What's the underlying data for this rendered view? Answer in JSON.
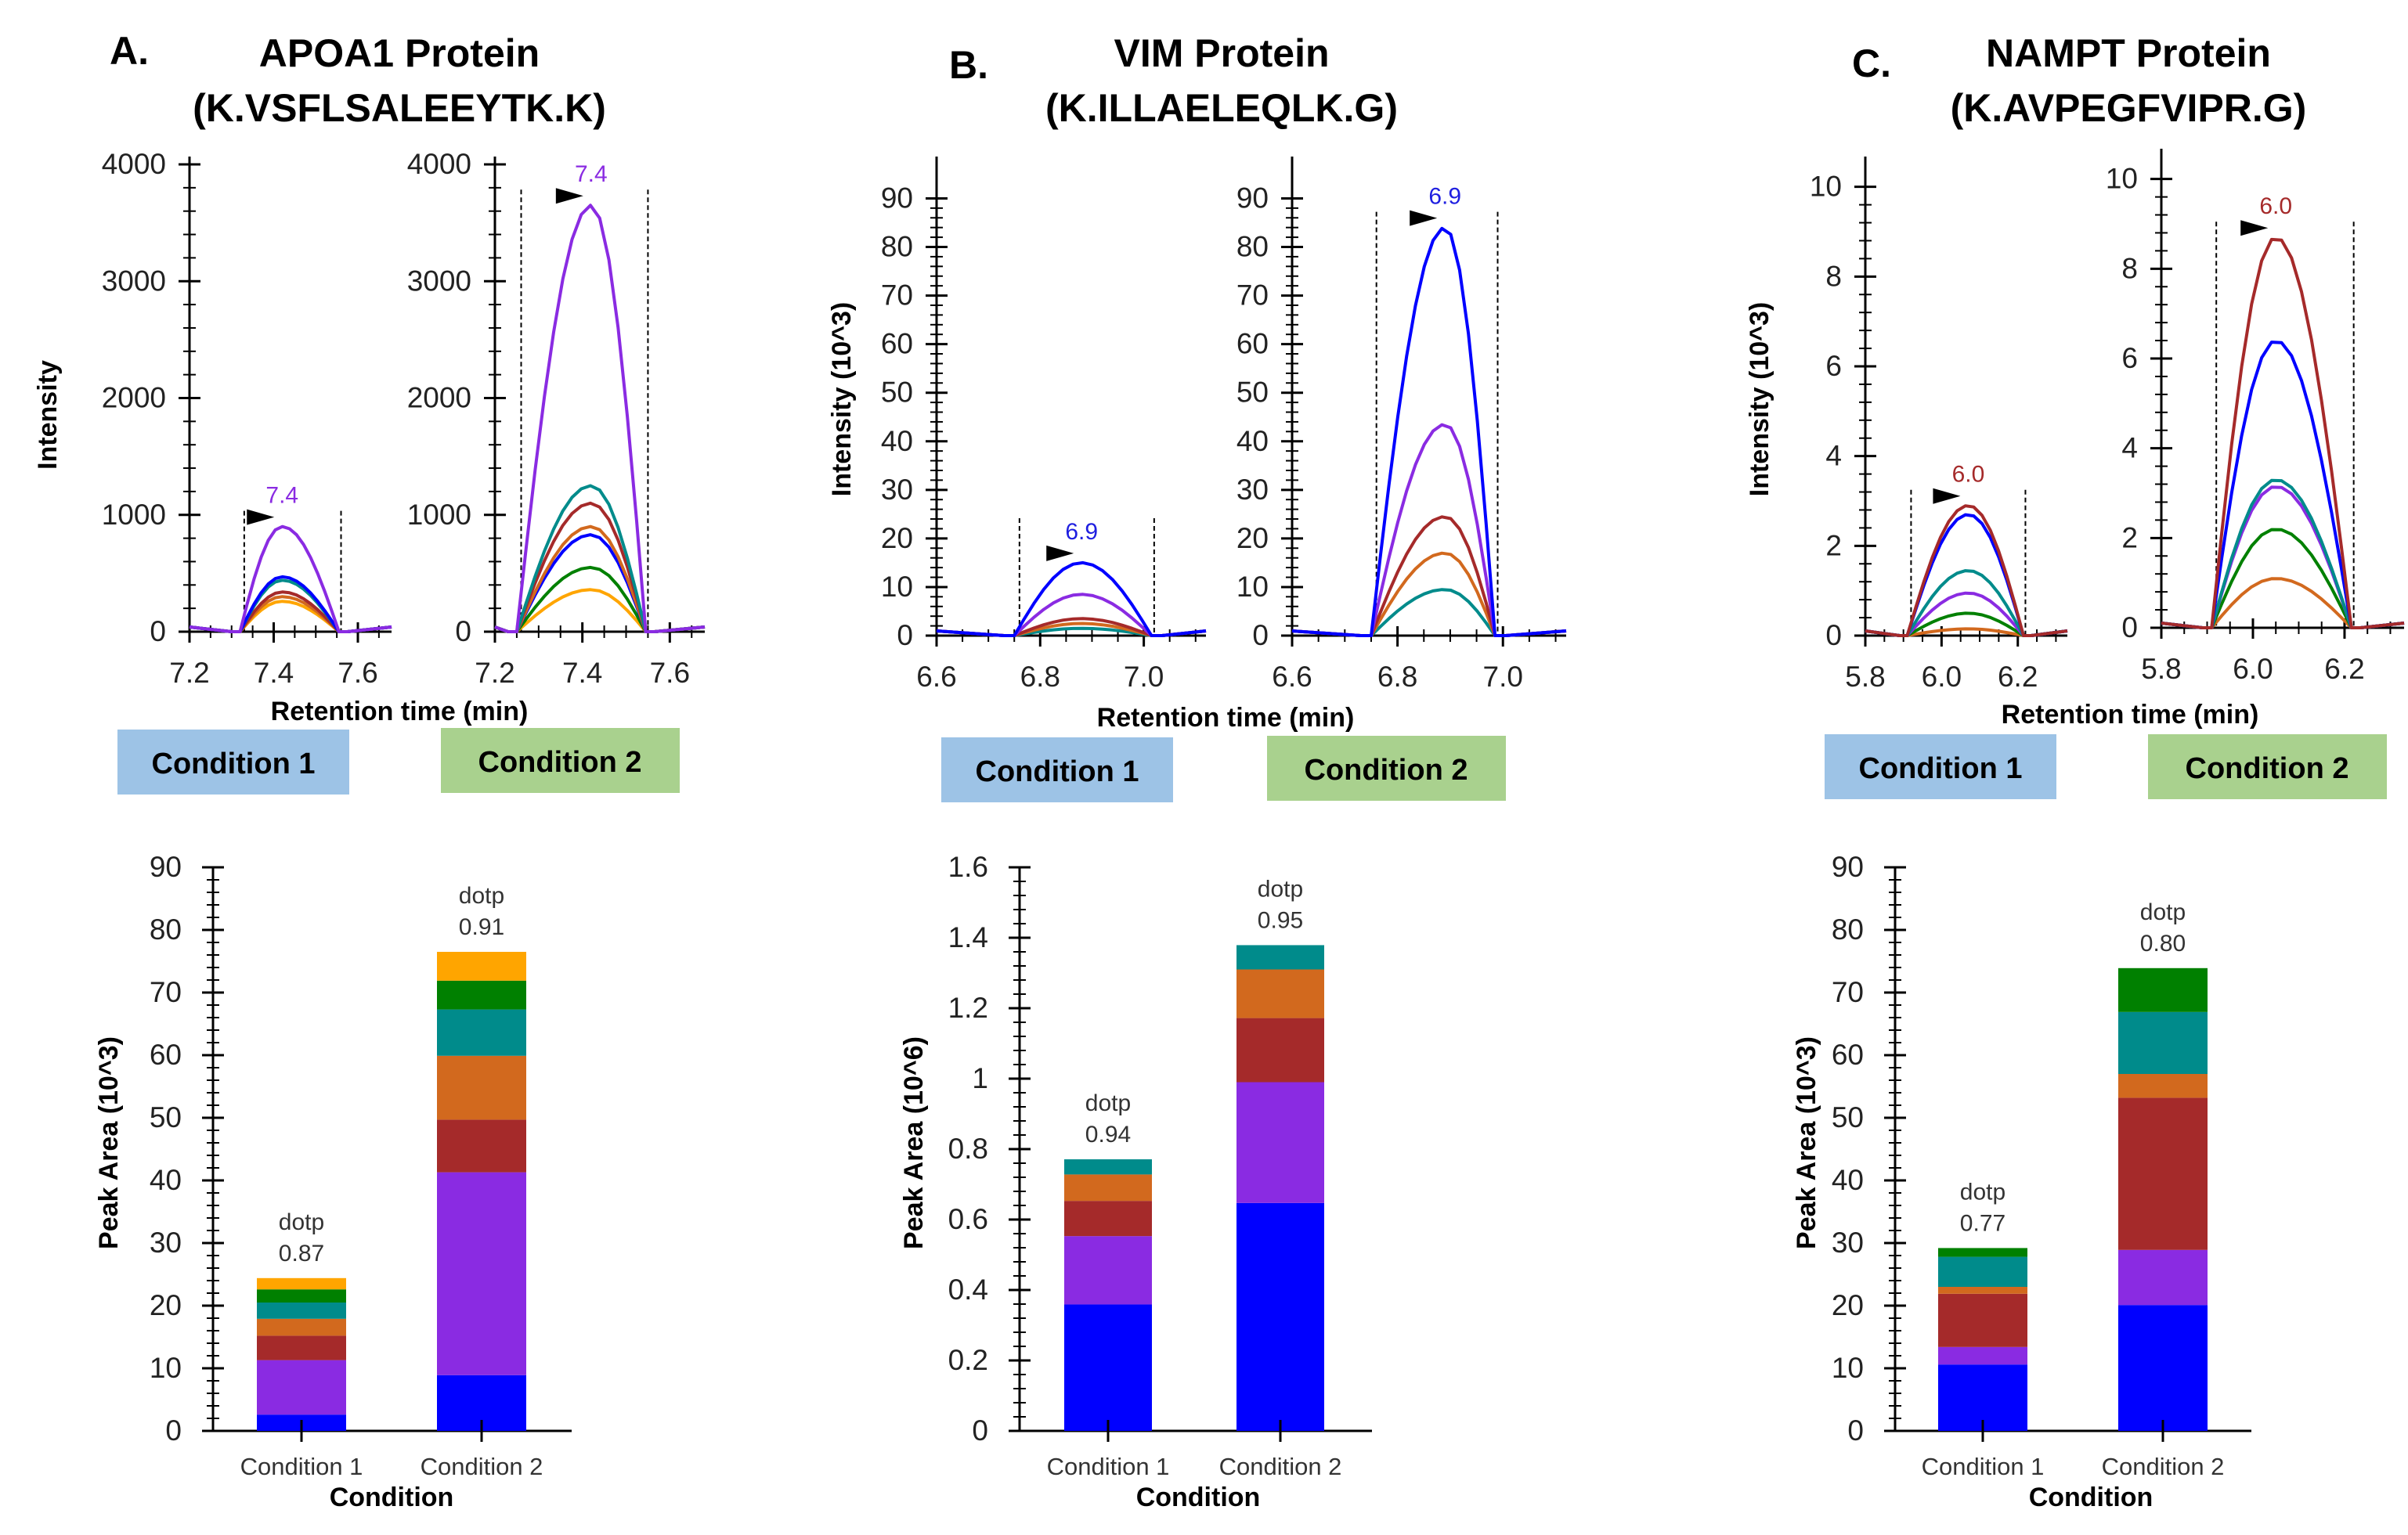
{
  "figure": {
    "series_colors": {
      "blue": "#0000FF",
      "purple": "#8A2BE2",
      "brown": "#A52A2A",
      "orange": "#D2691E",
      "teal": "#008B8B",
      "green": "#008000",
      "yellow": "#FFA500"
    },
    "condition_box_colors": {
      "condition_1": "#9DC3E6",
      "condition_2": "#A9D18E"
    },
    "condition_box_labels": [
      "Condition 1",
      "Condition 2"
    ]
  },
  "chart_data": [
    {
      "panel": "A.",
      "title_line1": "APOA1 Protein",
      "title_line2": "(K.VSFLSALEEYTK.K)",
      "chromatograms": {
        "type": "line",
        "ylabel": "Intensity",
        "xlabel": "Retention time (min)",
        "ylim": [
          0,
          4000
        ],
        "yticks": [
          0,
          1000,
          2000,
          3000,
          4000
        ],
        "yticks_labels": [
          "0",
          "1000",
          "2000",
          "3000",
          "4000"
        ],
        "xlim": [
          7.2,
          7.68
        ],
        "xticks": [
          7.2,
          7.4,
          7.6
        ],
        "xticks_labels": [
          "7.2",
          "7.4",
          "7.6"
        ],
        "plots": [
          {
            "condition": "Condition 1",
            "peak_label": "7.4",
            "peak_label_color": "#8A2BE2",
            "integration_bounds": [
              7.33,
              7.56
            ],
            "apex_rt": 7.42,
            "series": [
              {
                "color": "purple",
                "peak": 900
              },
              {
                "color": "blue",
                "peak": 470
              },
              {
                "color": "teal",
                "peak": 440
              },
              {
                "color": "brown",
                "peak": 340
              },
              {
                "color": "orange",
                "peak": 300
              },
              {
                "color": "yellow",
                "peak": 260
              }
            ]
          },
          {
            "condition": "Condition 2",
            "peak_label": "7.4",
            "peak_label_color": "#8A2BE2",
            "integration_bounds": [
              7.26,
              7.55
            ],
            "apex_rt": 7.42,
            "series": [
              {
                "color": "purple",
                "peak": 3650
              },
              {
                "color": "teal",
                "peak": 1250
              },
              {
                "color": "brown",
                "peak": 1100
              },
              {
                "color": "orange",
                "peak": 900
              },
              {
                "color": "blue",
                "peak": 830
              },
              {
                "color": "green",
                "peak": 550
              },
              {
                "color": "yellow",
                "peak": 360
              }
            ]
          }
        ]
      },
      "bars": {
        "type": "bar",
        "stacked": true,
        "xlabel": "Condition",
        "ylabel": "Peak Area (10^3)",
        "ylim": [
          0,
          90
        ],
        "yticks": [
          0,
          10,
          20,
          30,
          40,
          50,
          60,
          70,
          80,
          90
        ],
        "yticks_labels": [
          "0",
          "10",
          "20",
          "30",
          "40",
          "50",
          "60",
          "70",
          "80",
          "90"
        ],
        "categories": [
          "Condition 1",
          "Condition 2"
        ],
        "annotations": [
          {
            "line1": "dotp",
            "line2": "0.87"
          },
          {
            "line1": "dotp",
            "line2": "0.91"
          }
        ],
        "series": [
          {
            "name": "blue",
            "values": [
              2.6,
              8.9
            ]
          },
          {
            "name": "purple",
            "values": [
              8.7,
              32.4
            ]
          },
          {
            "name": "brown",
            "values": [
              3.9,
              8.4
            ]
          },
          {
            "name": "orange",
            "values": [
              2.7,
              10.2
            ]
          },
          {
            "name": "teal",
            "values": [
              2.6,
              7.4
            ]
          },
          {
            "name": "green",
            "values": [
              2.1,
              4.6
            ]
          },
          {
            "name": "yellow",
            "values": [
              1.8,
              4.6
            ]
          }
        ]
      }
    },
    {
      "panel": "B.",
      "title_line1": "VIM Protein",
      "title_line2": "(K.ILLAELEQLK.G)",
      "chromatograms": {
        "type": "line",
        "ylabel": "Intensity (10^3)",
        "xlabel": "Retention time (min)",
        "ylim": [
          0,
          97
        ],
        "yticks": [
          0,
          10,
          20,
          30,
          40,
          50,
          60,
          70,
          80,
          90
        ],
        "yticks_labels": [
          "0",
          "10",
          "20",
          "30",
          "40",
          "50",
          "60",
          "70",
          "80",
          "90"
        ],
        "xlim": [
          6.6,
          7.12
        ],
        "xticks": [
          6.6,
          6.8,
          7.0
        ],
        "xticks_labels": [
          "6.6",
          "6.8",
          "7.0"
        ],
        "plots": [
          {
            "condition": "Condition 1",
            "peak_label": "6.9",
            "peak_label_color": "#1F1FE0",
            "integration_bounds": [
              6.76,
              7.02
            ],
            "apex_rt": 6.88,
            "series": [
              {
                "color": "blue",
                "peak": 15
              },
              {
                "color": "purple",
                "peak": 8.5
              },
              {
                "color": "brown",
                "peak": 3.5
              },
              {
                "color": "orange",
                "peak": 2.5
              },
              {
                "color": "teal",
                "peak": 1.5
              }
            ]
          },
          {
            "condition": "Condition 2",
            "peak_label": "6.9",
            "peak_label_color": "#1F1FE0",
            "integration_bounds": [
              6.76,
              6.99
            ],
            "apex_rt": 6.89,
            "series": [
              {
                "color": "blue",
                "peak": 84
              },
              {
                "color": "purple",
                "peak": 43.5
              },
              {
                "color": "brown",
                "peak": 24.5
              },
              {
                "color": "orange",
                "peak": 17
              },
              {
                "color": "teal",
                "peak": 9.5
              }
            ]
          }
        ]
      },
      "bars": {
        "type": "bar",
        "stacked": true,
        "xlabel": "Condition",
        "ylabel": "Peak Area (10^6)",
        "ylim": [
          0,
          1.6
        ],
        "yticks": [
          0,
          0.2,
          0.4,
          0.6,
          0.8,
          1,
          1.2,
          1.4,
          1.6
        ],
        "yticks_labels": [
          "0",
          "0.2",
          "0.4",
          "0.6",
          "0.8",
          "1",
          "1.2",
          "1.4",
          "1.6"
        ],
        "categories": [
          "Condition 1",
          "Condition 2"
        ],
        "annotations": [
          {
            "line1": "dotp",
            "line2": "0.94"
          },
          {
            "line1": "dotp",
            "line2": "0.95"
          }
        ],
        "series": [
          {
            "name": "blue",
            "values": [
              0.359,
              0.647
            ]
          },
          {
            "name": "purple",
            "values": [
              0.194,
              0.343
            ]
          },
          {
            "name": "brown",
            "values": [
              0.1,
              0.182
            ]
          },
          {
            "name": "orange",
            "values": [
              0.075,
              0.138
            ]
          },
          {
            "name": "teal",
            "values": [
              0.043,
              0.069
            ]
          }
        ]
      }
    },
    {
      "panel": "C.",
      "title_line1": "NAMPT Protein",
      "title_line2": "(K.AVPEGFVIPR.G)",
      "chromatograms": {
        "type": "line",
        "ylabel": "Intensity (10^3)",
        "xlabel": "Retention time (min)",
        "ylim": [
          0,
          10.5
        ],
        "yticks": [
          0,
          2,
          4,
          6,
          8,
          10
        ],
        "yticks_labels": [
          "0",
          "2",
          "4",
          "6",
          "8",
          "10"
        ],
        "xlim": [
          5.8,
          6.33
        ],
        "xticks": [
          5.8,
          6.0,
          6.2
        ],
        "xticks_labels": [
          "5.8",
          "6.0",
          "6.2"
        ],
        "plots": [
          {
            "condition": "Condition 1",
            "peak_label": "6.0",
            "peak_label_color": "#A52A2A",
            "integration_bounds": [
              5.92,
              6.22
            ],
            "apex_rt": 6.07,
            "series": [
              {
                "color": "brown",
                "peak": 2.9
              },
              {
                "color": "blue",
                "peak": 2.7
              },
              {
                "color": "teal",
                "peak": 1.45
              },
              {
                "color": "purple",
                "peak": 0.95
              },
              {
                "color": "green",
                "peak": 0.5
              },
              {
                "color": "orange",
                "peak": 0.15
              }
            ]
          },
          {
            "condition": "Condition 2",
            "peak_label": "6.0",
            "peak_label_color": "#A52A2A",
            "integration_bounds": [
              5.92,
              6.22
            ],
            "apex_rt": 6.05,
            "series": [
              {
                "color": "brown",
                "peak": 8.7
              },
              {
                "color": "blue",
                "peak": 6.4
              },
              {
                "color": "teal",
                "peak": 3.3
              },
              {
                "color": "purple",
                "peak": 3.15
              },
              {
                "color": "green",
                "peak": 2.2
              },
              {
                "color": "orange",
                "peak": 1.1
              }
            ]
          }
        ]
      },
      "bars": {
        "type": "bar",
        "stacked": true,
        "xlabel": "Condition",
        "ylabel": "Peak Area (10^3)",
        "ylim": [
          0,
          90
        ],
        "yticks": [
          0,
          10,
          20,
          30,
          40,
          50,
          60,
          70,
          80,
          90
        ],
        "yticks_labels": [
          "0",
          "10",
          "20",
          "30",
          "40",
          "50",
          "60",
          "70",
          "80",
          "90"
        ],
        "categories": [
          "Condition 1",
          "Condition 2"
        ],
        "annotations": [
          {
            "line1": "dotp",
            "line2": "0.77"
          },
          {
            "line1": "dotp",
            "line2": "0.80"
          }
        ],
        "series": [
          {
            "name": "blue",
            "values": [
              10.6,
              20.1
            ]
          },
          {
            "name": "purple",
            "values": [
              2.8,
              8.8
            ]
          },
          {
            "name": "brown",
            "values": [
              8.5,
              24.3
            ]
          },
          {
            "name": "orange",
            "values": [
              1.1,
              3.8
            ]
          },
          {
            "name": "teal",
            "values": [
              4.8,
              9.9
            ]
          },
          {
            "name": "green",
            "values": [
              1.4,
              7.0
            ]
          }
        ]
      }
    }
  ]
}
